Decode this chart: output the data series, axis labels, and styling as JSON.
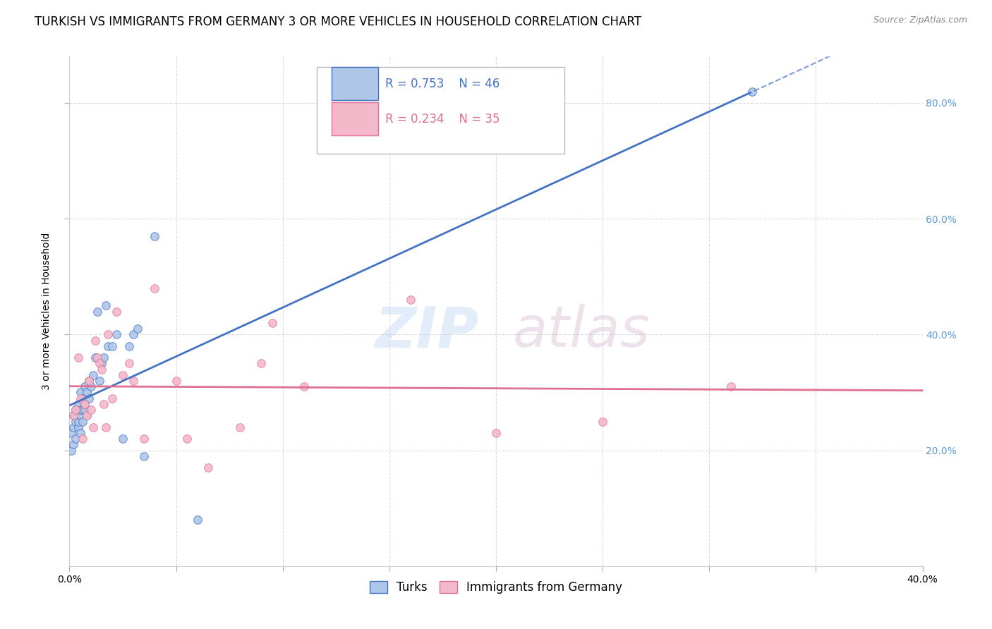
{
  "title": "TURKISH VS IMMIGRANTS FROM GERMANY 3 OR MORE VEHICLES IN HOUSEHOLD CORRELATION CHART",
  "source": "Source: ZipAtlas.com",
  "ylabel": "3 or more Vehicles in Household",
  "xlim": [
    0.0,
    0.4
  ],
  "ylim": [
    0.0,
    0.88
  ],
  "turks_R": 0.753,
  "turks_N": 46,
  "immigrants_R": 0.234,
  "immigrants_N": 35,
  "turks_color": "#aec6e8",
  "turks_line_color": "#4472c4",
  "immigrants_color": "#f4b8cb",
  "immigrants_line_color": "#e07090",
  "watermark_zip": "ZIP",
  "watermark_atlas": "atlas",
  "turks_x": [
    0.001,
    0.001,
    0.002,
    0.002,
    0.002,
    0.003,
    0.003,
    0.003,
    0.003,
    0.004,
    0.004,
    0.004,
    0.004,
    0.005,
    0.005,
    0.005,
    0.005,
    0.006,
    0.006,
    0.006,
    0.007,
    0.007,
    0.007,
    0.008,
    0.008,
    0.009,
    0.009,
    0.01,
    0.011,
    0.012,
    0.013,
    0.014,
    0.015,
    0.016,
    0.017,
    0.018,
    0.02,
    0.022,
    0.025,
    0.028,
    0.03,
    0.032,
    0.035,
    0.04,
    0.06,
    0.32
  ],
  "turks_y": [
    0.2,
    0.23,
    0.21,
    0.24,
    0.26,
    0.22,
    0.25,
    0.26,
    0.27,
    0.24,
    0.25,
    0.27,
    0.28,
    0.23,
    0.26,
    0.27,
    0.3,
    0.25,
    0.27,
    0.29,
    0.27,
    0.28,
    0.31,
    0.26,
    0.3,
    0.29,
    0.32,
    0.31,
    0.33,
    0.36,
    0.44,
    0.32,
    0.35,
    0.36,
    0.45,
    0.38,
    0.38,
    0.4,
    0.22,
    0.38,
    0.4,
    0.41,
    0.19,
    0.57,
    0.08,
    0.82
  ],
  "immigrants_x": [
    0.002,
    0.003,
    0.004,
    0.005,
    0.006,
    0.007,
    0.008,
    0.009,
    0.01,
    0.011,
    0.012,
    0.013,
    0.014,
    0.015,
    0.016,
    0.017,
    0.018,
    0.02,
    0.022,
    0.025,
    0.028,
    0.03,
    0.035,
    0.04,
    0.05,
    0.055,
    0.065,
    0.08,
    0.09,
    0.095,
    0.11,
    0.16,
    0.2,
    0.25,
    0.31
  ],
  "immigrants_y": [
    0.26,
    0.27,
    0.36,
    0.29,
    0.22,
    0.28,
    0.26,
    0.32,
    0.27,
    0.24,
    0.39,
    0.36,
    0.35,
    0.34,
    0.28,
    0.24,
    0.4,
    0.29,
    0.44,
    0.33,
    0.35,
    0.32,
    0.22,
    0.48,
    0.32,
    0.22,
    0.17,
    0.24,
    0.35,
    0.42,
    0.31,
    0.46,
    0.23,
    0.25,
    0.31
  ],
  "grid_color": "#d3d3d3",
  "background_color": "#ffffff",
  "right_tick_color": "#5b9bd5",
  "title_fontsize": 12,
  "axis_label_fontsize": 10,
  "tick_fontsize": 10,
  "legend_fontsize": 12
}
